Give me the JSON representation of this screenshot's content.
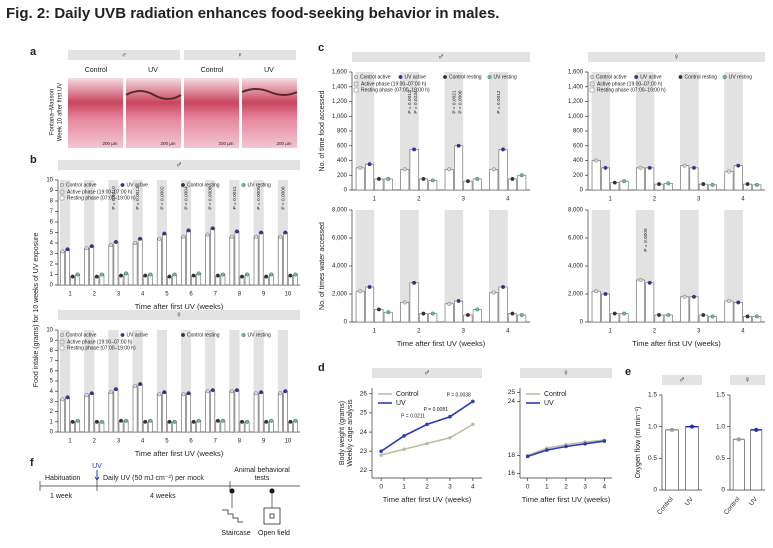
{
  "title": "Fig. 2: Daily UVB radiation enhances food-seeking behavior in males.",
  "panel_labels": [
    "a",
    "b",
    "c",
    "d",
    "e",
    "f"
  ],
  "panel_a": {
    "headers": [
      "♂",
      "♀"
    ],
    "columns": [
      "Control",
      "UV",
      "Control",
      "UV"
    ],
    "side_labels": [
      "Fontana–Masson",
      "Week 10 after first UV"
    ],
    "scale_bars": [
      "200 µm",
      "200 µm",
      "200 µm",
      "200 µm"
    ]
  },
  "chart_data": [
    {
      "type": "bar",
      "header": "♂",
      "ylabel": "Food intake (grams) for 10 weeks of UV exposure",
      "xlabel": "Time after first UV (weeks)",
      "categories": [
        "1",
        "2",
        "3",
        "4",
        "5",
        "6",
        "7",
        "8",
        "9",
        "10"
      ],
      "series": [
        {
          "name": "Control active",
          "color": "#d9d9d9",
          "values": [
            3.2,
            3.5,
            3.8,
            4.0,
            4.4,
            4.6,
            4.8,
            4.6,
            4.6,
            4.6
          ]
        },
        {
          "name": "UV active",
          "color": "#2b34a6",
          "values": [
            3.4,
            3.7,
            4.1,
            4.4,
            4.9,
            5.2,
            5.4,
            5.1,
            5.0,
            5.0
          ]
        },
        {
          "name": "Control resting",
          "color": "#333333",
          "values": [
            0.8,
            0.8,
            0.9,
            0.9,
            0.8,
            0.9,
            0.9,
            0.8,
            0.8,
            0.9
          ]
        },
        {
          "name": "UV resting",
          "color": "#5bbfb0",
          "values": [
            1.0,
            1.0,
            1.1,
            1.0,
            1.0,
            1.1,
            1.0,
            1.0,
            1.0,
            1.0
          ]
        }
      ],
      "phase_labels": [
        "Active phase (19:00–07:00 h)",
        "Resting phase (07:00–19:00 h)"
      ],
      "annotations": [
        "P = 0.0010",
        "P = 0.0013",
        "P = 0.0002",
        "P = 0.0004",
        "P = 0.0008",
        "P = 0.0011",
        "P = 0.0005",
        "P = 0.0006"
      ],
      "ylim": [
        0,
        10
      ],
      "yticks": [
        0,
        1,
        2,
        3,
        4,
        5,
        6,
        7,
        8,
        9,
        10
      ],
      "legend": "upper left"
    },
    {
      "type": "bar",
      "header": "♀",
      "xlabel": "Time after first UV (weeks)",
      "categories": [
        "1",
        "2",
        "3",
        "4",
        "5",
        "6",
        "7",
        "8",
        "9",
        "10"
      ],
      "series": [
        {
          "name": "Control active",
          "color": "#d9d9d9",
          "values": [
            3.2,
            3.6,
            3.9,
            4.5,
            3.7,
            3.7,
            4.0,
            4.0,
            3.8,
            3.8
          ]
        },
        {
          "name": "UV active",
          "color": "#2b34a6",
          "values": [
            3.4,
            3.8,
            4.2,
            4.7,
            3.9,
            3.8,
            4.1,
            4.1,
            3.9,
            4.0
          ]
        },
        {
          "name": "Control resting",
          "color": "#333333",
          "values": [
            1.0,
            1.0,
            1.1,
            1.0,
            1.0,
            1.0,
            1.1,
            1.0,
            1.0,
            1.0
          ]
        },
        {
          "name": "UV resting",
          "color": "#5bbfb0",
          "values": [
            1.1,
            1.0,
            1.1,
            1.1,
            1.0,
            1.1,
            1.1,
            1.0,
            1.1,
            1.1
          ]
        }
      ],
      "phase_labels": [
        "Active phase (19:00–07:00 h)",
        "Resting phase (07:00–19:00 h)"
      ],
      "ylim": [
        0,
        10
      ],
      "yticks": [
        0,
        1,
        2,
        3,
        4,
        5,
        6,
        7,
        8,
        9,
        10
      ],
      "legend": "upper left"
    },
    {
      "type": "bar",
      "header": "♂",
      "ylabel": "No. of time food accessed",
      "categories": [
        "1",
        "2",
        "3",
        "4"
      ],
      "series": [
        {
          "name": "Control active",
          "color": "#d9d9d9",
          "values": [
            300,
            280,
            280,
            280
          ]
        },
        {
          "name": "UV active",
          "color": "#2b34a6",
          "values": [
            350,
            550,
            600,
            550
          ]
        },
        {
          "name": "Control resting",
          "color": "#333333",
          "values": [
            150,
            150,
            120,
            150
          ]
        },
        {
          "name": "UV resting",
          "color": "#5bbfb0",
          "values": [
            150,
            130,
            150,
            200
          ]
        }
      ],
      "phase_labels": [
        "Active phase (19:00–07:00 h)",
        "Resting phase (07:00–19:00 h)"
      ],
      "annotations": [
        "P = 0.0012",
        "P = 0.0234",
        "P = 0.0021",
        "P = 0.0006",
        "P = 0.0012"
      ],
      "ylim": [
        0,
        1600
      ],
      "yticks": [
        0,
        200,
        400,
        600,
        800,
        {
          "value": 1000,
          "label": "1,000"
        },
        {
          "value": 1200,
          "label": "1,200"
        },
        {
          "value": 1400,
          "label": "1,400"
        },
        {
          "value": 1600,
          "label": "1,600"
        }
      ],
      "legend": "upper left"
    },
    {
      "type": "bar",
      "header": "♀",
      "categories": [
        "1",
        "2",
        "3",
        "4"
      ],
      "series": [
        {
          "name": "Control active",
          "color": "#d9d9d9",
          "values": [
            400,
            300,
            330,
            250
          ]
        },
        {
          "name": "UV active",
          "color": "#2b34a6",
          "values": [
            300,
            300,
            300,
            330
          ]
        },
        {
          "name": "Control resting",
          "color": "#333333",
          "values": [
            100,
            80,
            80,
            80
          ]
        },
        {
          "name": "UV resting",
          "color": "#5bbfb0",
          "values": [
            120,
            90,
            70,
            70
          ]
        }
      ],
      "phase_labels": [
        "Active phase (19:00–07:00 h)",
        "Resting phase (07:00–19:00 h)"
      ],
      "ylim": [
        0,
        1600
      ],
      "yticks": [
        0,
        200,
        400,
        600,
        800,
        {
          "value": 1000,
          "label": "1,000"
        },
        {
          "value": 1200,
          "label": "1,200"
        },
        {
          "value": 1400,
          "label": "1,400"
        },
        {
          "value": 1600,
          "label": "1,600"
        }
      ],
      "legend": "upper left"
    },
    {
      "type": "bar",
      "ylabel": "No. of times water accessed",
      "xlabel": "Time after first UV (weeks)",
      "categories": [
        "1",
        "2",
        "3",
        "4"
      ],
      "series": [
        {
          "name": "Control active",
          "color": "#d9d9d9",
          "values": [
            2200,
            1400,
            1300,
            2100
          ]
        },
        {
          "name": "UV active",
          "color": "#2b34a6",
          "values": [
            2500,
            2800,
            1500,
            2500
          ]
        },
        {
          "name": "Control resting",
          "color": "#333333",
          "values": [
            900,
            600,
            500,
            600
          ]
        },
        {
          "name": "UV resting",
          "color": "#5bbfb0",
          "values": [
            700,
            600,
            900,
            500
          ]
        }
      ],
      "ylim": [
        0,
        8000
      ],
      "yticks": [
        0,
        {
          "value": 2000,
          "label": "2,000"
        },
        {
          "value": 4000,
          "label": "4,000"
        },
        {
          "value": 6000,
          "label": "6,000"
        },
        {
          "value": 8000,
          "label": "8,000"
        }
      ]
    },
    {
      "type": "bar",
      "xlabel": "Time after first UV (weeks)",
      "categories": [
        "1",
        "2",
        "3",
        "4"
      ],
      "series": [
        {
          "name": "Control active",
          "color": "#d9d9d9",
          "values": [
            2200,
            3000,
            1800,
            1500
          ]
        },
        {
          "name": "UV active",
          "color": "#2b34a6",
          "values": [
            2000,
            2800,
            1800,
            1400
          ]
        },
        {
          "name": "Control resting",
          "color": "#333333",
          "values": [
            600,
            500,
            500,
            400
          ]
        },
        {
          "name": "UV resting",
          "color": "#5bbfb0",
          "values": [
            600,
            500,
            400,
            400
          ]
        }
      ],
      "annotations": [
        "P = 0.0009"
      ],
      "ylim": [
        0,
        8000
      ],
      "yticks": [
        0,
        {
          "value": 2000,
          "label": "2,000"
        },
        {
          "value": 4000,
          "label": "4,000"
        },
        {
          "value": 6000,
          "label": "6,000"
        },
        {
          "value": 8000,
          "label": "8,000"
        }
      ]
    },
    {
      "type": "line",
      "header": "♂",
      "ylabel": "Body weight (grams)",
      "ylabel2": "Weekly cage analysis",
      "xlabel": "Time after first UV (weeks)",
      "x": [
        0,
        1,
        2,
        3,
        4
      ],
      "xlim": [
        -0.4,
        4.4
      ],
      "xticks": [
        0,
        1,
        2,
        3,
        4
      ],
      "series": [
        {
          "name": "Control",
          "color": "#bdbda6",
          "values": [
            22.8,
            23.1,
            23.4,
            23.7,
            24.4
          ]
        },
        {
          "name": "UV",
          "color": "#2a3bbf",
          "values": [
            23.0,
            23.8,
            24.4,
            24.8,
            25.6
          ]
        }
      ],
      "annotations": [
        "P = 0.0038",
        "P = 0.0081",
        "P = 0.0211"
      ],
      "ylim": [
        21.6,
        26.3
      ],
      "yticks": [
        22,
        23,
        24,
        25,
        26
      ],
      "legend": "upper left"
    },
    {
      "type": "line",
      "header": "♀",
      "xlabel": "Time after first UV (weeks)",
      "x": [
        0,
        1,
        2,
        3,
        4
      ],
      "xlim": [
        -0.4,
        4.4
      ],
      "xticks": [
        0,
        1,
        2,
        3,
        4
      ],
      "series": [
        {
          "name": "Control",
          "color": "#bdbda6",
          "values": [
            18.0,
            18.8,
            19.2,
            19.5,
            19.7
          ]
        },
        {
          "name": "UV",
          "color": "#2a3bbf",
          "values": [
            17.9,
            18.6,
            19.0,
            19.3,
            19.6
          ]
        }
      ],
      "ylim": [
        15.5,
        25.5
      ],
      "yticks": [
        16,
        18,
        24,
        25
      ],
      "legend": "upper left"
    },
    {
      "type": "bar",
      "header": "♂",
      "ylabel": "Oxygen flow (ml min⁻¹)",
      "categories": [
        "Control",
        "UV"
      ],
      "values": [
        0.95,
        1.0
      ],
      "colors": [
        "#999999",
        "#1f2fa8"
      ],
      "ylim": [
        0,
        1.5
      ],
      "yticks": [
        0,
        0.5,
        {
          "value": 1,
          "label": "1.0"
        },
        1.5
      ]
    },
    {
      "type": "bar",
      "header": "♀",
      "categories": [
        "Control",
        "UV"
      ],
      "values": [
        0.8,
        0.95
      ],
      "colors": [
        "#999999",
        "#1f2fa8"
      ],
      "ylim": [
        0,
        1.5
      ],
      "yticks": [
        0,
        0.5,
        {
          "value": 1,
          "label": "1.0"
        },
        1.5
      ]
    }
  ],
  "timeline": {
    "stages": [
      "Habituation",
      "1 week",
      "UV",
      "Daily UV (50 mJ cm⁻²) per mock",
      "4 weeks",
      "Animal behavioral",
      "tests"
    ],
    "tests": [
      "Staircase",
      "Open field"
    ]
  }
}
